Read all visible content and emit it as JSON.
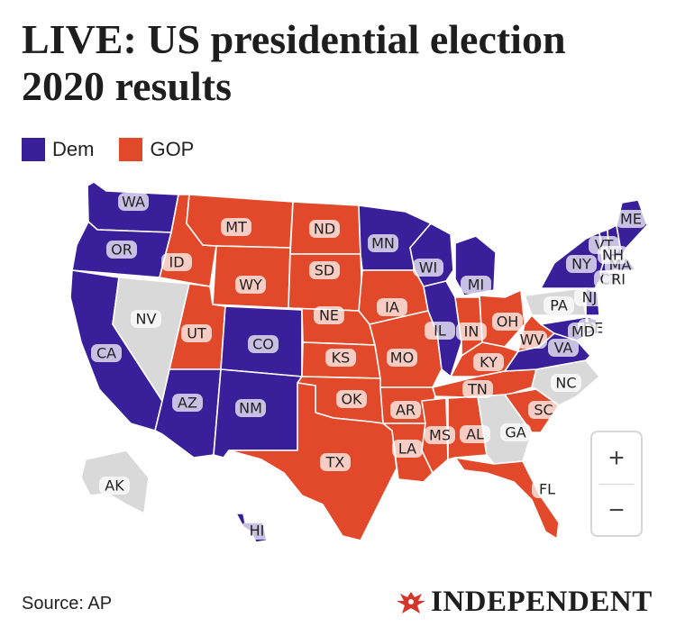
{
  "title": "LIVE: US presidential election 2020 results",
  "legend": [
    {
      "label": "Dem",
      "color": "#3a1f9a"
    },
    {
      "label": "GOP",
      "color": "#e2492a"
    }
  ],
  "colors": {
    "dem": "#3a1f9a",
    "gop": "#e2492a",
    "none": "#d9d9d9"
  },
  "states": [
    {
      "code": "WA",
      "winner": "dem"
    },
    {
      "code": "OR",
      "winner": "dem"
    },
    {
      "code": "CA",
      "winner": "dem"
    },
    {
      "code": "NV",
      "winner": "none"
    },
    {
      "code": "ID",
      "winner": "gop"
    },
    {
      "code": "MT",
      "winner": "gop"
    },
    {
      "code": "WY",
      "winner": "gop"
    },
    {
      "code": "UT",
      "winner": "gop"
    },
    {
      "code": "AZ",
      "winner": "dem"
    },
    {
      "code": "CO",
      "winner": "dem"
    },
    {
      "code": "NM",
      "winner": "dem"
    },
    {
      "code": "ND",
      "winner": "gop"
    },
    {
      "code": "SD",
      "winner": "gop"
    },
    {
      "code": "NE",
      "winner": "gop"
    },
    {
      "code": "KS",
      "winner": "gop"
    },
    {
      "code": "OK",
      "winner": "gop"
    },
    {
      "code": "TX",
      "winner": "gop"
    },
    {
      "code": "MN",
      "winner": "dem"
    },
    {
      "code": "IA",
      "winner": "gop"
    },
    {
      "code": "MO",
      "winner": "gop"
    },
    {
      "code": "AR",
      "winner": "gop"
    },
    {
      "code": "LA",
      "winner": "gop"
    },
    {
      "code": "WI",
      "winner": "dem"
    },
    {
      "code": "IL",
      "winner": "dem"
    },
    {
      "code": "MI",
      "winner": "dem"
    },
    {
      "code": "IN",
      "winner": "gop"
    },
    {
      "code": "OH",
      "winner": "gop"
    },
    {
      "code": "KY",
      "winner": "gop"
    },
    {
      "code": "TN",
      "winner": "gop"
    },
    {
      "code": "MS",
      "winner": "gop"
    },
    {
      "code": "AL",
      "winner": "gop"
    },
    {
      "code": "GA",
      "winner": "none"
    },
    {
      "code": "FL",
      "winner": "gop"
    },
    {
      "code": "SC",
      "winner": "gop"
    },
    {
      "code": "NC",
      "winner": "none"
    },
    {
      "code": "VA",
      "winner": "dem"
    },
    {
      "code": "WV",
      "winner": "gop"
    },
    {
      "code": "PA",
      "winner": "none"
    },
    {
      "code": "NY",
      "winner": "dem"
    },
    {
      "code": "NJ",
      "winner": "dem"
    },
    {
      "code": "DE",
      "winner": "dem"
    },
    {
      "code": "MD",
      "winner": "dem"
    },
    {
      "code": "CT",
      "winner": "dem"
    },
    {
      "code": "RI",
      "winner": "dem"
    },
    {
      "code": "MA",
      "winner": "dem"
    },
    {
      "code": "VT",
      "winner": "dem"
    },
    {
      "code": "NH",
      "winner": "dem"
    },
    {
      "code": "ME",
      "winner": "dem"
    },
    {
      "code": "AK",
      "winner": "none"
    },
    {
      "code": "HI",
      "winner": "dem"
    }
  ],
  "zoom": {
    "in_label": "+",
    "out_label": "−"
  },
  "source": "Source: AP",
  "brand": "INDEPENDENT"
}
